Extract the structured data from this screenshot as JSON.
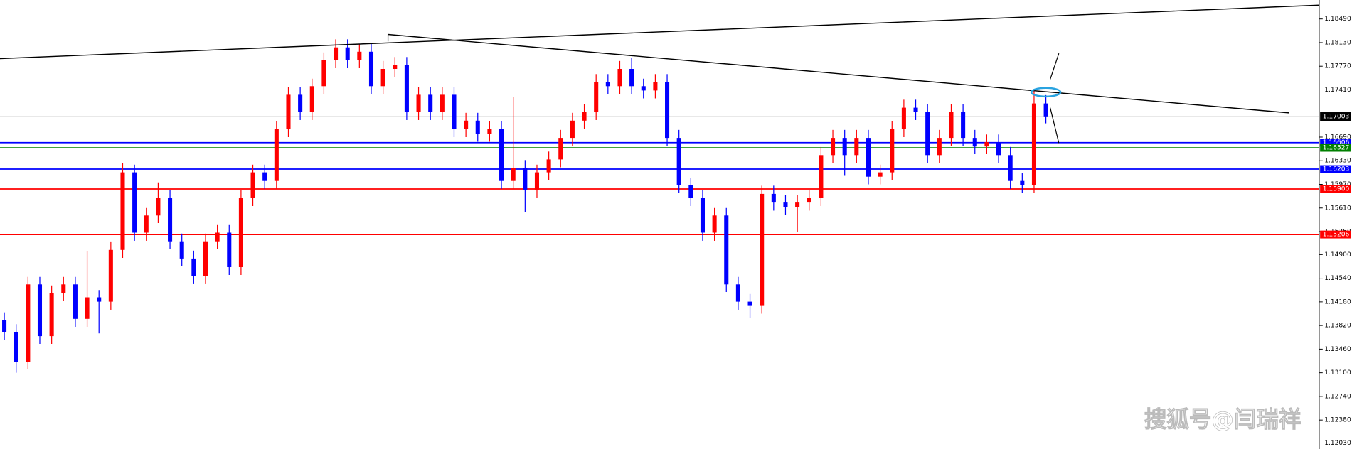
{
  "chart_data": {
    "type": "candlestick",
    "up_color": "#ff0000",
    "down_color": "#0000ff",
    "ylim": [
      1.11938,
      1.18779
    ],
    "yticks": [
      {
        "value": 1.1849,
        "label": "1.18490"
      },
      {
        "value": 1.1813,
        "label": "1.18130"
      },
      {
        "value": 1.1777,
        "label": "1.17770"
      },
      {
        "value": 1.1741,
        "label": "1.17410"
      },
      {
        "value": 1.1669,
        "label": "1.16690"
      },
      {
        "value": 1.1633,
        "label": "1.16330"
      },
      {
        "value": 1.1597,
        "label": "1.15970"
      },
      {
        "value": 1.1561,
        "label": "1.15610"
      },
      {
        "value": 1.1525,
        "label": "1.15250"
      },
      {
        "value": 1.149,
        "label": "1.14900"
      },
      {
        "value": 1.1454,
        "label": "1.14540"
      },
      {
        "value": 1.1418,
        "label": "1.14180"
      },
      {
        "value": 1.1382,
        "label": "1.13820"
      },
      {
        "value": 1.1346,
        "label": "1.13460"
      },
      {
        "value": 1.131,
        "label": "1.13100"
      },
      {
        "value": 1.1274,
        "label": "1.12740"
      },
      {
        "value": 1.1238,
        "label": "1.12380"
      },
      {
        "value": 1.1203,
        "label": "1.12030"
      }
    ],
    "current_price": {
      "value": 1.17003,
      "label": "1.17003"
    },
    "levels": [
      {
        "value": 1.16606,
        "label": "1.16606",
        "color": "#0000ff"
      },
      {
        "value": 1.16527,
        "label": "1.16527",
        "color": "#008000"
      },
      {
        "value": 1.16203,
        "label": "1.16203",
        "color": "#0000ff"
      },
      {
        "value": 1.159,
        "label": "1.15900",
        "color": "#ff0000"
      },
      {
        "value": 1.15206,
        "label": "1.15206",
        "color": "#ff0000"
      }
    ],
    "watermark": "搜狐号@闫瑞祥",
    "candles": [
      [
        1.139,
        1.1402,
        1.136,
        1.13724
      ],
      [
        1.13724,
        1.1384,
        1.131,
        1.13264
      ],
      [
        1.13264,
        1.1456,
        1.1315,
        1.14446
      ],
      [
        1.14446,
        1.1456,
        1.1354,
        1.13658
      ],
      [
        1.13658,
        1.1443,
        1.1354,
        1.14315
      ],
      [
        1.14315,
        1.1456,
        1.142,
        1.14446
      ],
      [
        1.14446,
        1.1456,
        1.138,
        1.13921
      ],
      [
        1.13921,
        1.1495,
        1.138,
        1.14249
      ],
      [
        1.14249,
        1.1436,
        1.137,
        1.14183
      ],
      [
        1.14183,
        1.151,
        1.1406,
        1.14971
      ],
      [
        1.14971,
        1.163,
        1.1485,
        1.16153
      ],
      [
        1.16153,
        1.1627,
        1.1511,
        1.15234
      ],
      [
        1.15234,
        1.1561,
        1.1511,
        1.15496
      ],
      [
        1.15496,
        1.16,
        1.1538,
        1.15759
      ],
      [
        1.15759,
        1.1588,
        1.1498,
        1.15102
      ],
      [
        1.15102,
        1.1522,
        1.1472,
        1.1484
      ],
      [
        1.1484,
        1.1496,
        1.1445,
        1.14577
      ],
      [
        1.14577,
        1.1522,
        1.1445,
        1.15102
      ],
      [
        1.15102,
        1.1535,
        1.1498,
        1.15234
      ],
      [
        1.15234,
        1.1535,
        1.1459,
        1.14709
      ],
      [
        1.14709,
        1.1588,
        1.1459,
        1.15759
      ],
      [
        1.15759,
        1.1627,
        1.1564,
        1.16153
      ],
      [
        1.16153,
        1.1627,
        1.159,
        1.16022
      ],
      [
        1.16022,
        1.1693,
        1.159,
        1.16809
      ],
      [
        1.16809,
        1.1745,
        1.1669,
        1.17335
      ],
      [
        1.17335,
        1.1745,
        1.1695,
        1.17072
      ],
      [
        1.17072,
        1.1758,
        1.1695,
        1.17466
      ],
      [
        1.17466,
        1.1798,
        1.1735,
        1.1786
      ],
      [
        1.1786,
        1.1818,
        1.1774,
        1.18057
      ],
      [
        1.18057,
        1.1818,
        1.1774,
        1.1786
      ],
      [
        1.1786,
        1.1811,
        1.1774,
        1.17991
      ],
      [
        1.17991,
        1.1811,
        1.1735,
        1.17466
      ],
      [
        1.17466,
        1.1785,
        1.1735,
        1.17729
      ],
      [
        1.17729,
        1.1791,
        1.1761,
        1.17794
      ],
      [
        1.17794,
        1.1791,
        1.1695,
        1.17072
      ],
      [
        1.17072,
        1.1745,
        1.1695,
        1.17335
      ],
      [
        1.17335,
        1.1745,
        1.1695,
        1.17072
      ],
      [
        1.17072,
        1.1745,
        1.1695,
        1.17335
      ],
      [
        1.17335,
        1.1745,
        1.1669,
        1.16809
      ],
      [
        1.16809,
        1.1706,
        1.1669,
        1.16941
      ],
      [
        1.16941,
        1.1706,
        1.1662,
        1.16744
      ],
      [
        1.16744,
        1.1693,
        1.1662,
        1.16809
      ],
      [
        1.16809,
        1.1693,
        1.159,
        1.16022
      ],
      [
        1.16022,
        1.173,
        1.159,
        1.16219
      ],
      [
        1.16219,
        1.1634,
        1.1555,
        1.1589
      ],
      [
        1.1589,
        1.1627,
        1.1577,
        1.16153
      ],
      [
        1.16153,
        1.1647,
        1.1603,
        1.1635
      ],
      [
        1.1635,
        1.168,
        1.1623,
        1.16678
      ],
      [
        1.16678,
        1.1706,
        1.1656,
        1.16941
      ],
      [
        1.16941,
        1.1719,
        1.1682,
        1.17072
      ],
      [
        1.17072,
        1.1765,
        1.1695,
        1.17532
      ],
      [
        1.17532,
        1.1765,
        1.1735,
        1.17466
      ],
      [
        1.17466,
        1.1785,
        1.1735,
        1.17729
      ],
      [
        1.17729,
        1.179,
        1.1735,
        1.17466
      ],
      [
        1.17466,
        1.1758,
        1.1728,
        1.174
      ],
      [
        1.174,
        1.1765,
        1.1728,
        1.17532
      ],
      [
        1.17532,
        1.1765,
        1.1656,
        1.16678
      ],
      [
        1.16678,
        1.168,
        1.1584,
        1.15956
      ],
      [
        1.15956,
        1.1607,
        1.1564,
        1.15759
      ],
      [
        1.15759,
        1.1588,
        1.1511,
        1.15234
      ],
      [
        1.15234,
        1.1561,
        1.1511,
        1.15496
      ],
      [
        1.15496,
        1.1561,
        1.1433,
        1.14446
      ],
      [
        1.14446,
        1.1456,
        1.1406,
        1.14183
      ],
      [
        1.14183,
        1.143,
        1.1394,
        1.14118
      ],
      [
        1.14118,
        1.1595,
        1.14,
        1.15825
      ],
      [
        1.15825,
        1.1595,
        1.1557,
        1.15693
      ],
      [
        1.15693,
        1.1581,
        1.1551,
        1.15628
      ],
      [
        1.15628,
        1.1581,
        1.1525,
        1.15693
      ],
      [
        1.15693,
        1.1588,
        1.1557,
        1.15759
      ],
      [
        1.15759,
        1.1654,
        1.1564,
        1.16416
      ],
      [
        1.16416,
        1.168,
        1.163,
        1.16678
      ],
      [
        1.16678,
        1.168,
        1.161,
        1.16416
      ],
      [
        1.16416,
        1.168,
        1.163,
        1.16678
      ],
      [
        1.16678,
        1.168,
        1.1597,
        1.16087
      ],
      [
        1.16087,
        1.1627,
        1.1597,
        1.16153
      ],
      [
        1.16153,
        1.1693,
        1.1603,
        1.16809
      ],
      [
        1.16809,
        1.1726,
        1.1669,
        1.17138
      ],
      [
        1.17138,
        1.1726,
        1.1695,
        1.17072
      ],
      [
        1.17072,
        1.1719,
        1.163,
        1.16416
      ],
      [
        1.16416,
        1.168,
        1.163,
        1.16678
      ],
      [
        1.16678,
        1.1719,
        1.1656,
        1.17072
      ],
      [
        1.17072,
        1.1719,
        1.1656,
        1.16678
      ],
      [
        1.16678,
        1.168,
        1.1643,
        1.16547
      ],
      [
        1.16547,
        1.1673,
        1.1643,
        1.16613
      ],
      [
        1.16613,
        1.1673,
        1.163,
        1.16416
      ],
      [
        1.16416,
        1.1654,
        1.159,
        1.16022
      ],
      [
        1.16022,
        1.1614,
        1.1584,
        1.15956
      ],
      [
        1.15956,
        1.1741,
        1.1584,
        1.17203
      ],
      [
        1.17203,
        1.1733,
        1.169,
        1.17006
      ]
    ]
  }
}
